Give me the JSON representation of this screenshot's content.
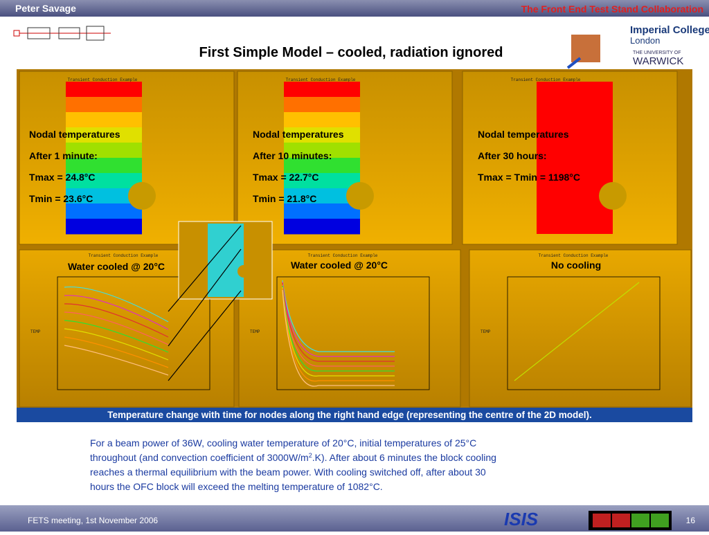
{
  "header": {
    "author": "Peter Savage",
    "collaboration": "The Front End Test Stand Collaboration",
    "title": "First Simple Model – cooled, radiation ignored",
    "logos": [
      "Imperial College",
      "London",
      "THE UNIVERSITY OF",
      "WARWICK"
    ]
  },
  "panels": [
    {
      "lines": [
        "Nodal temperatures",
        "After 1 minute:",
        "Tmax = 24.8°C",
        "Tmin = 23.6°C"
      ],
      "plot_label": "Water cooled @ 20°C"
    },
    {
      "lines": [
        "Nodal temperatures",
        "After 10 minutes:",
        "Tmax = 22.7°C",
        "Tmin = 21.8°C"
      ],
      "plot_label": "Water cooled @ 20°C"
    },
    {
      "lines": [
        "Nodal temperatures",
        "After 30 hours:",
        "Tmax = Tmin = 1198°C"
      ],
      "plot_label": "No cooling"
    }
  ],
  "ansys_title": "Transient Conduction Example",
  "axis_label": "TEMP",
  "caption": "Temperature change with time for nodes along the right hand edge (representing the centre of the 2D model).",
  "paragraph": [
    "For a beam power of 36W, cooling water temperature of 20°C, initial temperatures of 25°C",
    "throughout (and convection coefficient of 3000W/m",
    "2",
    ".K). After about 6 minutes the block cooling",
    "reaches a thermal equilibrium with the beam power. With cooling switched off, after about 30",
    "hours the OFC block will exceed the melting temperature of 1082°C."
  ],
  "footer": {
    "meeting": "FETS meeting, 1st November 2006",
    "logo": "ISIS",
    "page": "16"
  }
}
